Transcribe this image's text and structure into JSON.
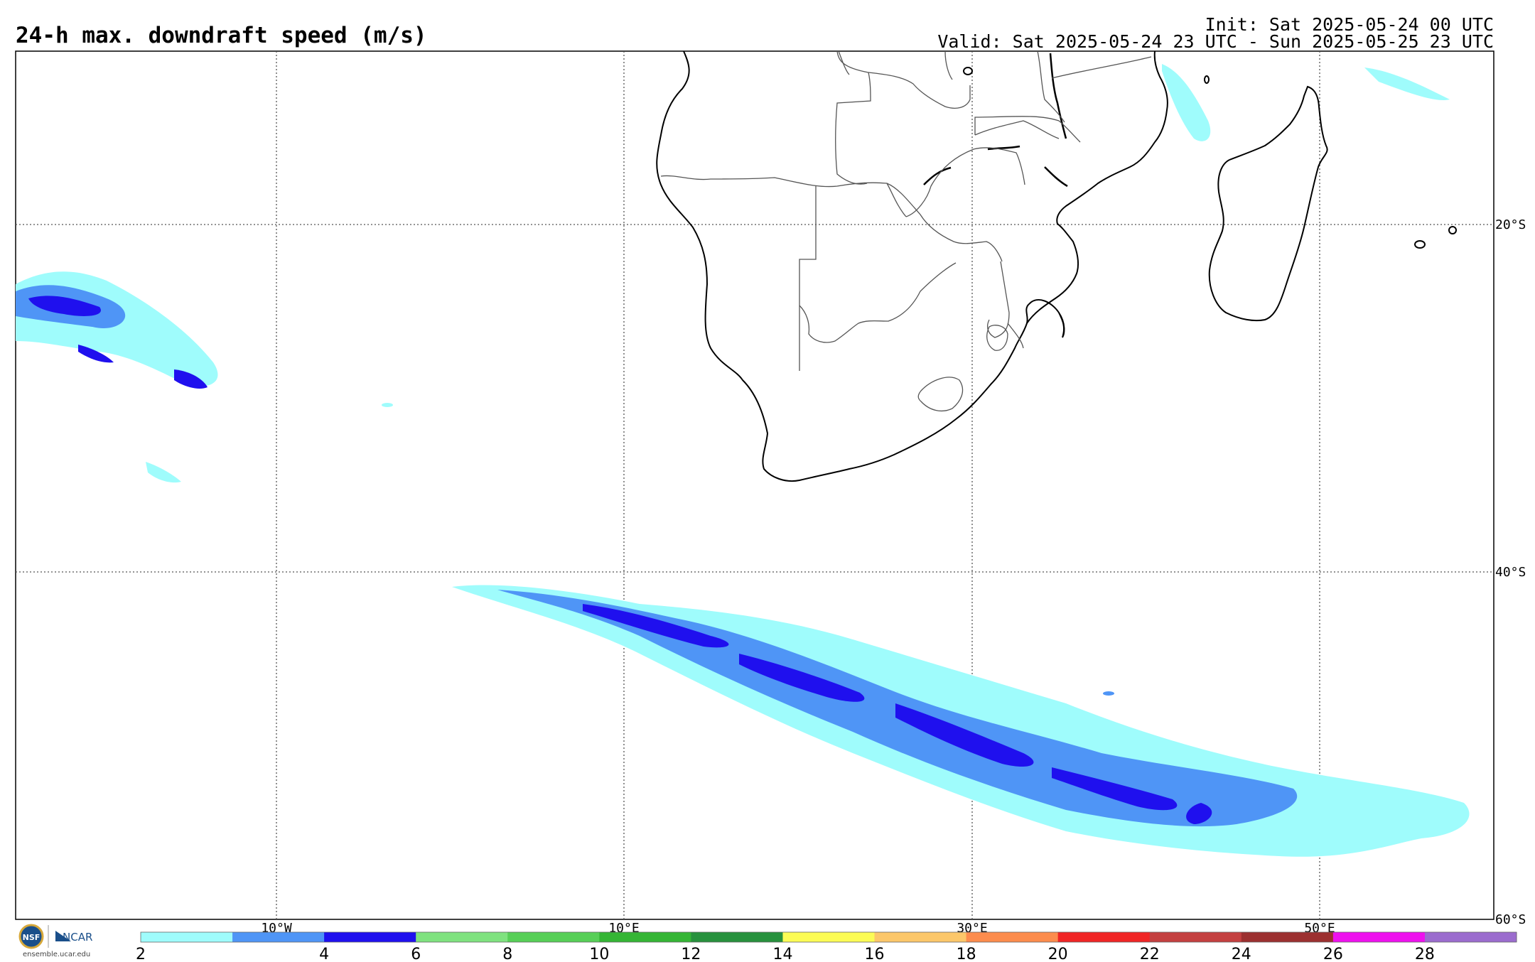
{
  "header": {
    "title": "24-h max. downdraft speed (m/s)",
    "init": "Init: Sat 2025-05-24 00 UTC",
    "valid": "Valid: Sat 2025-05-24 23 UTC - Sun 2025-05-25 23 UTC"
  },
  "map": {
    "projection": "cylindrical equidistant",
    "lon_range": [
      -25,
      60
    ],
    "lat_range": [
      -60,
      -10
    ],
    "lon_grid_labels": [
      "10°W",
      "10°E",
      "30°E",
      "50°E"
    ],
    "lat_grid_labels": [
      "20°S",
      "40°S",
      "60°S"
    ],
    "gridlines": "dotted",
    "features": [
      "coastlines",
      "country borders",
      "lakes"
    ]
  },
  "colorbar": {
    "tick_labels": [
      "2",
      "4",
      "6",
      "8",
      "10",
      "12",
      "14",
      "16",
      "18",
      "20",
      "22",
      "24",
      "26",
      "28"
    ],
    "bounds": [
      2,
      3,
      4,
      6,
      8,
      10,
      12,
      14,
      16,
      18,
      20,
      22,
      24,
      26,
      28
    ],
    "colors": [
      "#9ffcfc",
      "#4f95f6",
      "#1f10ee",
      "#7fe27f",
      "#57cf57",
      "#35b535",
      "#27913d",
      "#fcfc55",
      "#fcc76a",
      "#fc8c4d",
      "#f02525",
      "#c44040",
      "#9c3030",
      "#ee11ee",
      "#9b6cce"
    ]
  },
  "branding": {
    "logo_labels": [
      "NSF",
      "NCAR"
    ],
    "url": "ensemble.ucar.edu"
  }
}
